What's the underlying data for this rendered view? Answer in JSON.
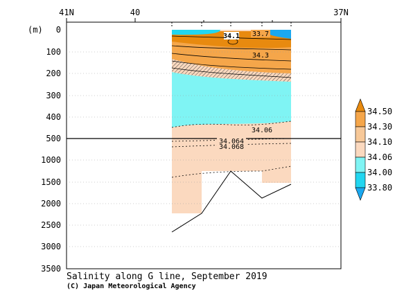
{
  "chart_data": {
    "type": "contour-section",
    "title": "Salinity along G line, September 2019",
    "credit": "(C) Japan Meteorological Agency",
    "x_axis": {
      "tick_labels": [
        "41N",
        "40",
        "37N"
      ],
      "range_latitude_north": [
        41,
        37
      ]
    },
    "y_axis": {
      "unit_label": "(m)",
      "upper_panel_ticks": [
        "0",
        "100",
        "200",
        "300",
        "400",
        "500"
      ],
      "lower_panel_ticks": [
        "1000",
        "1500",
        "2000",
        "2500",
        "3000",
        "3500"
      ],
      "upper_range_m": [
        0,
        500
      ],
      "lower_range_m": [
        500,
        3500
      ]
    },
    "colorbar": {
      "levels": [
        "34.50",
        "34.30",
        "34.10",
        "34.06",
        "34.00",
        "33.80"
      ],
      "colors": [
        "#e88a0f",
        "#f5a64a",
        "#f7c898",
        "#fbd9bf",
        "#7ff4f4",
        "#22d6f0",
        "#1aa8f0"
      ]
    },
    "contour_labels": [
      "34.1",
      "33.7",
      "34.3",
      "34.06",
      "34.064",
      "34.068"
    ],
    "bottom_profile": {
      "lat": [
        39.5,
        39.15,
        38.95,
        38.7,
        38.38
      ],
      "depth_m": [
        2650,
        2200,
        1250,
        1850,
        1550
      ]
    }
  }
}
